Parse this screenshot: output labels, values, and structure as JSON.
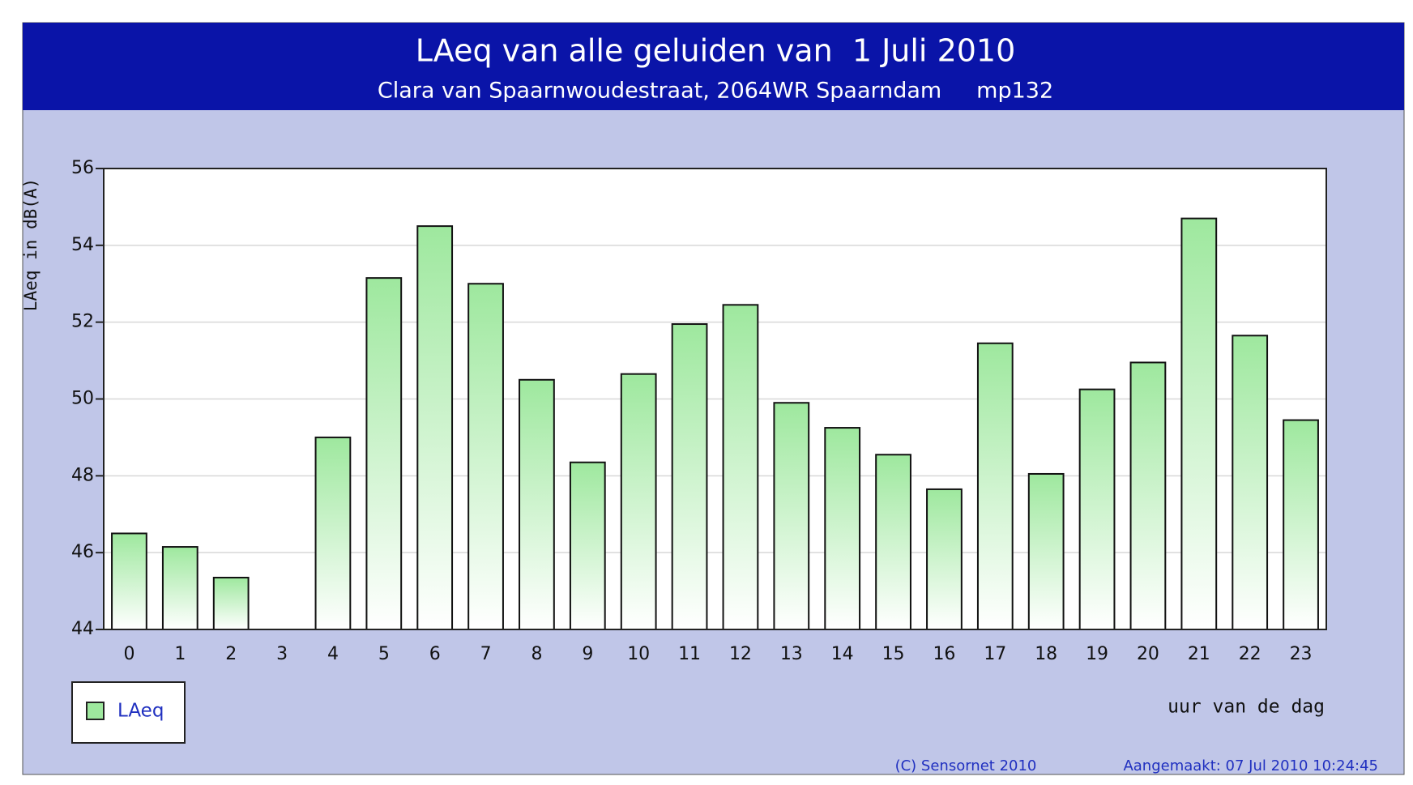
{
  "chart_data": {
    "type": "bar",
    "title": "LAeq van alle geluiden van  1 Juli 2010",
    "subtitle": "Clara van Spaarnwoudestraat, 2064WR Spaarndam     mp132",
    "y_label": "LAeq in dB(A)",
    "x_label": "uur van de dag",
    "categories": [
      "0",
      "1",
      "2",
      "3",
      "4",
      "5",
      "6",
      "7",
      "8",
      "9",
      "10",
      "11",
      "12",
      "13",
      "14",
      "15",
      "16",
      "17",
      "18",
      "19",
      "20",
      "21",
      "22",
      "23"
    ],
    "series": [
      {
        "name": "LAeq",
        "color": "#9ee89e",
        "values": [
          46.5,
          46.15,
          45.35,
          null,
          49.0,
          53.15,
          54.5,
          53.0,
          50.5,
          48.35,
          50.65,
          51.95,
          52.45,
          49.9,
          49.25,
          48.55,
          47.65,
          51.45,
          48.05,
          50.25,
          50.95,
          54.7,
          51.65,
          49.45
        ]
      }
    ],
    "ylim": [
      44,
      56
    ],
    "yticks": [
      44,
      46,
      48,
      50,
      52,
      54,
      56
    ],
    "grid": true,
    "legend": "bottom-left",
    "copyright": "(C) Sensornet 2010",
    "created": "Aangemaakt: 07 Jul 2010 10:24:45"
  }
}
